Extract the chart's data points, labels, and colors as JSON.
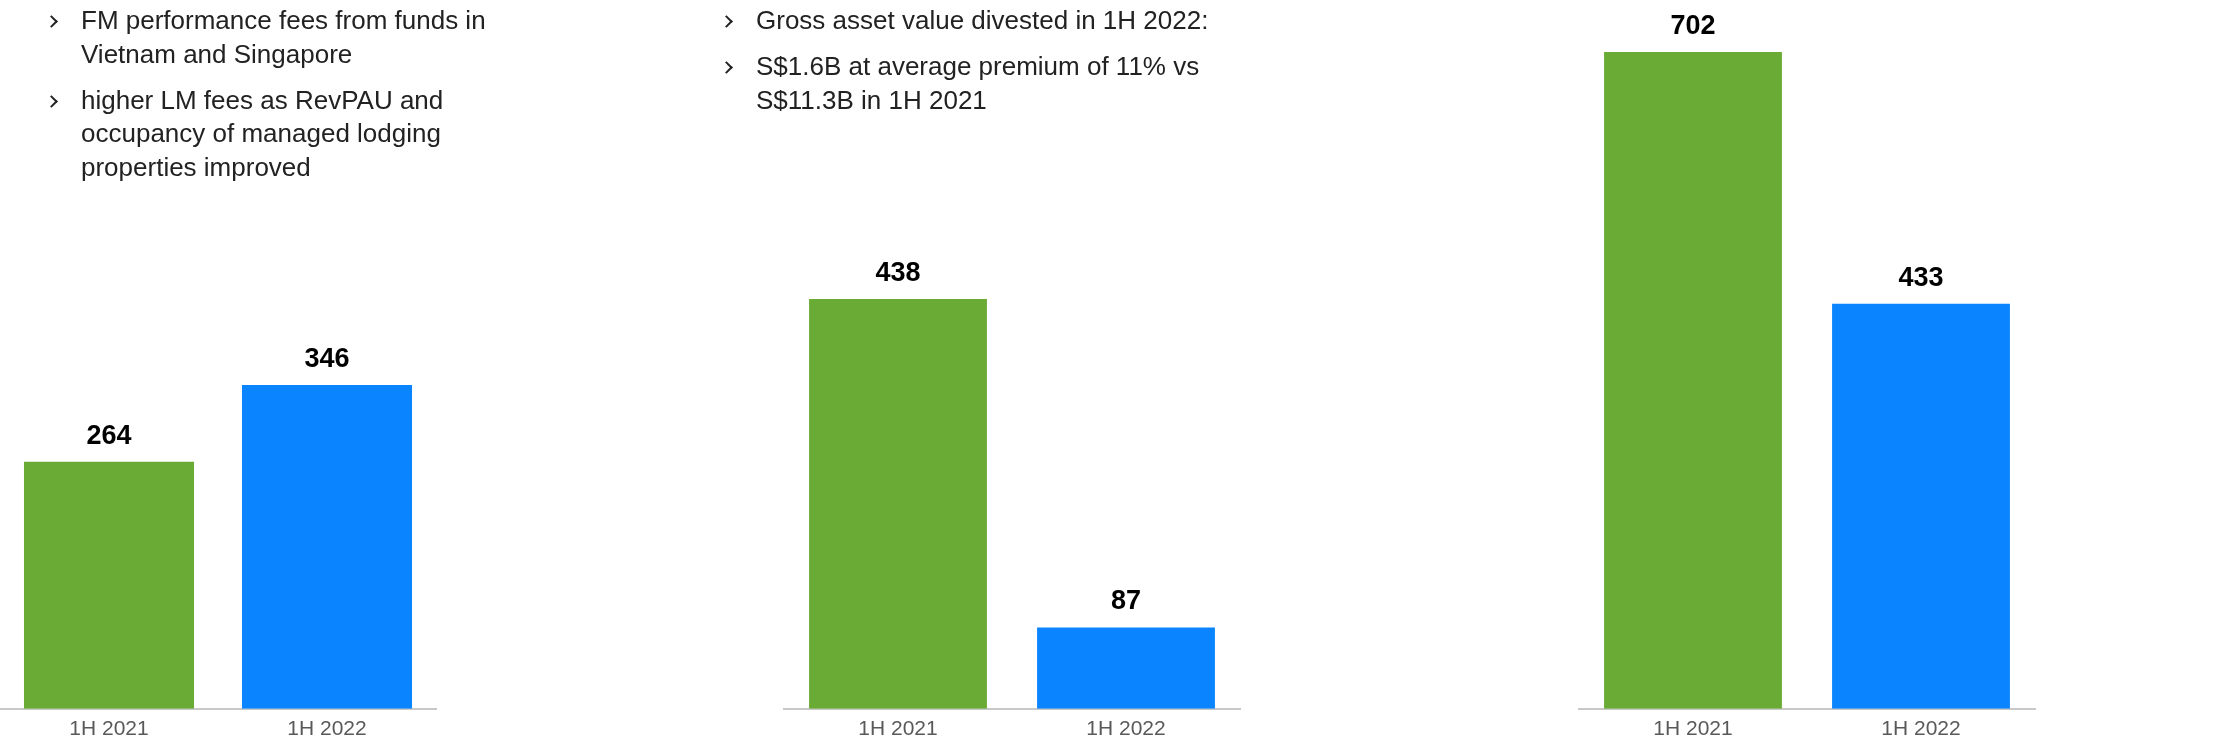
{
  "chart_data": [
    {
      "type": "bar",
      "categories": [
        "1H 2021",
        "1H 2022"
      ],
      "values": [
        264,
        346
      ],
      "colors": [
        "#6aab35",
        "#0a84ff"
      ],
      "data_labels": true,
      "grid": false,
      "annotations": [
        "FM performance fees from funds in Vietnam and Singapore",
        "higher LM fees as RevPAU and occupancy of managed lodging properties improved"
      ]
    },
    {
      "type": "bar",
      "categories": [
        "1H 2021",
        "1H 2022"
      ],
      "values": [
        438,
        87
      ],
      "colors": [
        "#6aab35",
        "#0a84ff"
      ],
      "data_labels": true,
      "grid": false,
      "annotations": [
        "Gross asset value divested in 1H 2022:",
        "S$1.6B at average premium of 11% vs S$11.3B in 1H 2021"
      ]
    },
    {
      "type": "bar",
      "categories": [
        "1H 2021",
        "1H 2022"
      ],
      "values": [
        702,
        433
      ],
      "colors": [
        "#6aab35",
        "#0a84ff"
      ],
      "data_labels": true,
      "grid": false
    }
  ]
}
